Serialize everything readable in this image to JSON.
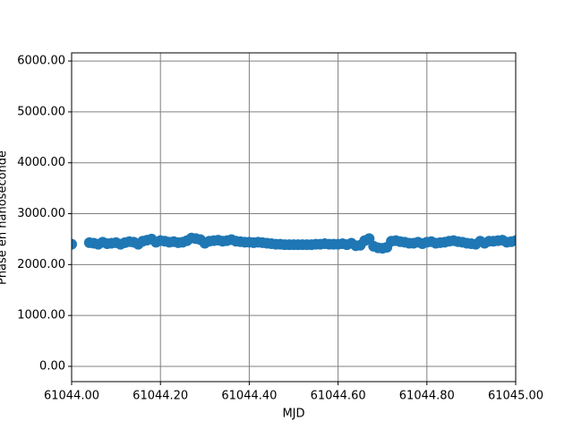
{
  "chart_data": {
    "type": "scatter",
    "xlabel": "MJD",
    "ylabel": "Phase en nanoseconde",
    "color": "#1f77b4",
    "grid": true,
    "xlim": [
      61044.0,
      61045.0
    ],
    "xticks": [
      {
        "value": 61044.0,
        "label": "61044.00"
      },
      {
        "value": 61044.2,
        "label": "61044.20"
      },
      {
        "value": 61044.4,
        "label": "61044.40"
      },
      {
        "value": 61044.6,
        "label": "61044.60"
      },
      {
        "value": 61044.8,
        "label": "61044.80"
      },
      {
        "value": 61045.0,
        "label": "61045.00"
      }
    ],
    "ylim": [
      -300,
      6160
    ],
    "yticks": [
      {
        "value": 0,
        "label": "0.00"
      },
      {
        "value": 1000,
        "label": "1000.00"
      },
      {
        "value": 2000,
        "label": "2000.00"
      },
      {
        "value": 3000,
        "label": "3000.00"
      },
      {
        "value": 4000,
        "label": "4000.00"
      },
      {
        "value": 5000,
        "label": "5000.00"
      },
      {
        "value": 6000,
        "label": "6000.00"
      }
    ],
    "x": [
      61044.0,
      61044.04,
      61044.05,
      61044.06,
      61044.07,
      61044.08,
      61044.09,
      61044.1,
      61044.11,
      61044.12,
      61044.13,
      61044.14,
      61044.15,
      61044.16,
      61044.17,
      61044.18,
      61044.19,
      61044.2,
      61044.21,
      61044.22,
      61044.23,
      61044.24,
      61044.25,
      61044.26,
      61044.27,
      61044.28,
      61044.29,
      61044.3,
      61044.31,
      61044.32,
      61044.33,
      61044.34,
      61044.35,
      61044.36,
      61044.37,
      61044.38,
      61044.39,
      61044.4,
      61044.41,
      61044.42,
      61044.43,
      61044.44,
      61044.45,
      61044.46,
      61044.47,
      61044.48,
      61044.49,
      61044.5,
      61044.51,
      61044.52,
      61044.53,
      61044.54,
      61044.55,
      61044.56,
      61044.57,
      61044.58,
      61044.59,
      61044.6,
      61044.61,
      61044.62,
      61044.63,
      61044.64,
      61044.65,
      61044.66,
      61044.67,
      61044.68,
      61044.69,
      61044.7,
      61044.71,
      61044.72,
      61044.73,
      61044.74,
      61044.75,
      61044.76,
      61044.77,
      61044.78,
      61044.79,
      61044.8,
      61044.81,
      61044.82,
      61044.83,
      61044.84,
      61044.85,
      61044.86,
      61044.87,
      61044.88,
      61044.89,
      61044.9,
      61044.91,
      61044.92,
      61044.93,
      61044.94,
      61044.95,
      61044.96,
      61044.97,
      61044.98,
      61044.99,
      61045.0
    ],
    "values": [
      2400,
      2430,
      2420,
      2400,
      2440,
      2410,
      2420,
      2430,
      2400,
      2430,
      2450,
      2440,
      2400,
      2460,
      2480,
      2500,
      2440,
      2470,
      2460,
      2440,
      2450,
      2430,
      2440,
      2470,
      2520,
      2510,
      2490,
      2420,
      2460,
      2470,
      2480,
      2460,
      2470,
      2490,
      2460,
      2450,
      2440,
      2440,
      2430,
      2440,
      2430,
      2420,
      2410,
      2400,
      2400,
      2390,
      2390,
      2390,
      2390,
      2390,
      2390,
      2390,
      2400,
      2400,
      2410,
      2400,
      2400,
      2400,
      2410,
      2390,
      2420,
      2370,
      2380,
      2470,
      2510,
      2360,
      2330,
      2320,
      2340,
      2460,
      2470,
      2450,
      2440,
      2420,
      2420,
      2440,
      2410,
      2440,
      2450,
      2420,
      2430,
      2440,
      2460,
      2470,
      2450,
      2440,
      2420,
      2410,
      2400,
      2460,
      2420,
      2460,
      2460,
      2470,
      2480,
      2440,
      2450,
      2470
    ]
  }
}
